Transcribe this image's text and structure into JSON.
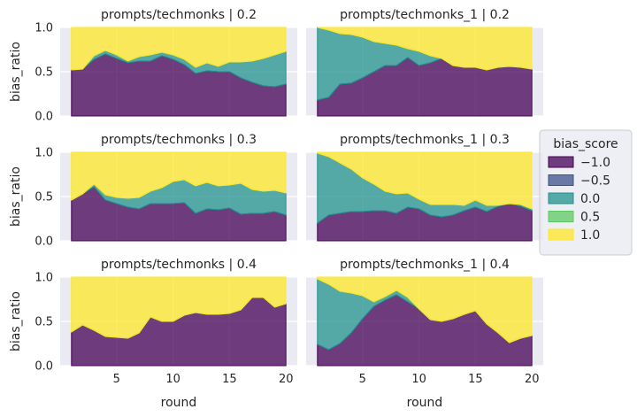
{
  "chart_data": {
    "type": "area",
    "stacked": true,
    "normalized": true,
    "ylim": [
      0,
      1
    ],
    "xlim": [
      0,
      21
    ],
    "xticks": [
      5,
      10,
      15,
      20
    ],
    "yticks": [
      0.0,
      0.5,
      1.0
    ],
    "ytick_labels": [
      "0.0",
      "0.5",
      "1.0"
    ],
    "xlabel": "round",
    "ylabel": "bias_ratio",
    "grid": true,
    "legend": {
      "title": "bias_score",
      "placement": "center-right-outside",
      "entries": [
        {
          "label": "−1.0",
          "color": "#440154"
        },
        {
          "label": "−0.5",
          "color": "#3b528b"
        },
        {
          "label": "0.0",
          "color": "#21918c"
        },
        {
          "label": "0.5",
          "color": "#5ec962"
        },
        {
          "label": "1.0",
          "color": "#fde725"
        }
      ]
    },
    "panels": [
      {
        "title": "prompts/techmonks | 0.2",
        "x": [
          1,
          2,
          3,
          4,
          5,
          6,
          7,
          8,
          9,
          10,
          11,
          12,
          13,
          14,
          15,
          16,
          17,
          18,
          19,
          20
        ],
        "series": [
          {
            "name": "−1.0",
            "values": [
              0.52,
              0.53,
              0.64,
              0.7,
              0.65,
              0.6,
              0.62,
              0.62,
              0.68,
              0.64,
              0.58,
              0.48,
              0.51,
              0.5,
              0.5,
              0.43,
              0.38,
              0.34,
              0.33,
              0.36
            ]
          },
          {
            "name": "−0.5",
            "values": [
              0,
              0,
              0,
              0,
              0,
              0,
              0,
              0,
              0,
              0,
              0,
              0,
              0,
              0,
              0,
              0,
              0,
              0,
              0,
              0
            ]
          },
          {
            "name": "0.0",
            "values": [
              0,
              0,
              0.04,
              0.04,
              0.04,
              0.02,
              0.05,
              0.07,
              0.04,
              0.05,
              0.06,
              0.07,
              0.09,
              0.06,
              0.11,
              0.18,
              0.24,
              0.31,
              0.36,
              0.37
            ]
          },
          {
            "name": "0.5",
            "values": [
              0,
              0,
              0,
              0,
              0,
              0,
              0,
              0,
              0,
              0,
              0,
              0,
              0,
              0,
              0,
              0,
              0,
              0,
              0,
              0
            ]
          },
          {
            "name": "1.0",
            "values": [
              0.48,
              0.47,
              0.32,
              0.26,
              0.31,
              0.38,
              0.33,
              0.31,
              0.28,
              0.31,
              0.36,
              0.45,
              0.4,
              0.44,
              0.39,
              0.39,
              0.38,
              0.35,
              0.31,
              0.27
            ]
          }
        ]
      },
      {
        "title": "prompts/techmonks_1 | 0.2",
        "x": [
          1,
          2,
          3,
          4,
          5,
          6,
          7,
          8,
          9,
          10,
          11,
          12,
          13,
          14,
          15,
          16,
          17,
          18,
          19,
          20
        ],
        "series": [
          {
            "name": "−1.0",
            "values": [
              0.18,
              0.21,
              0.36,
              0.37,
              0.43,
              0.5,
              0.57,
              0.57,
              0.66,
              0.57,
              0.6,
              0.65,
              0.57,
              0.55,
              0.55,
              0.52,
              0.55,
              0.56,
              0.55,
              0.53
            ]
          },
          {
            "name": "−0.5",
            "values": [
              0,
              0,
              0,
              0,
              0,
              0,
              0,
              0,
              0,
              0,
              0,
              0,
              0,
              0,
              0,
              0,
              0,
              0,
              0,
              0
            ]
          },
          {
            "name": "0.0",
            "values": [
              0.82,
              0.76,
              0.57,
              0.55,
              0.46,
              0.34,
              0.25,
              0.23,
              0.1,
              0.16,
              0.08,
              0.0,
              0.0,
              0.0,
              0.0,
              0.0,
              0.0,
              0.0,
              0.0,
              0.0
            ]
          },
          {
            "name": "0.5",
            "values": [
              0,
              0,
              0,
              0,
              0,
              0,
              0,
              0,
              0,
              0,
              0,
              0,
              0,
              0,
              0,
              0,
              0,
              0,
              0,
              0
            ]
          },
          {
            "name": "1.0",
            "values": [
              0.0,
              0.03,
              0.07,
              0.08,
              0.11,
              0.16,
              0.18,
              0.2,
              0.24,
              0.27,
              0.32,
              0.35,
              0.43,
              0.45,
              0.45,
              0.48,
              0.45,
              0.44,
              0.45,
              0.47
            ]
          }
        ]
      },
      {
        "title": "prompts/techmonks | 0.3",
        "x": [
          1,
          2,
          3,
          4,
          5,
          6,
          7,
          8,
          9,
          10,
          11,
          12,
          13,
          14,
          15,
          16,
          17,
          18,
          19,
          20
        ],
        "series": [
          {
            "name": "−1.0",
            "values": [
              0.46,
              0.53,
              0.61,
              0.46,
              0.42,
              0.38,
              0.36,
              0.42,
              0.42,
              0.42,
              0.43,
              0.31,
              0.36,
              0.35,
              0.37,
              0.3,
              0.31,
              0.31,
              0.33,
              0.29
            ]
          },
          {
            "name": "−0.5",
            "values": [
              0,
              0,
              0,
              0,
              0,
              0,
              0,
              0,
              0,
              0,
              0,
              0,
              0,
              0,
              0,
              0,
              0,
              0,
              0,
              0
            ]
          },
          {
            "name": "0.0",
            "values": [
              0,
              0,
              0.03,
              0.06,
              0.07,
              0.1,
              0.13,
              0.14,
              0.18,
              0.25,
              0.26,
              0.31,
              0.3,
              0.27,
              0.26,
              0.35,
              0.27,
              0.25,
              0.24,
              0.25
            ]
          },
          {
            "name": "0.5",
            "values": [
              0,
              0,
              0,
              0,
              0,
              0,
              0,
              0,
              0,
              0,
              0,
              0,
              0,
              0,
              0,
              0,
              0,
              0,
              0,
              0
            ]
          },
          {
            "name": "1.0",
            "values": [
              0.54,
              0.47,
              0.36,
              0.48,
              0.51,
              0.52,
              0.51,
              0.44,
              0.4,
              0.33,
              0.31,
              0.38,
              0.34,
              0.38,
              0.37,
              0.35,
              0.42,
              0.44,
              0.43,
              0.46
            ]
          }
        ]
      },
      {
        "title": "prompts/techmonks_1 | 0.3",
        "x": [
          1,
          2,
          3,
          4,
          5,
          6,
          7,
          8,
          9,
          10,
          11,
          12,
          13,
          14,
          15,
          16,
          17,
          18,
          19,
          20
        ],
        "series": [
          {
            "name": "−1.0",
            "values": [
              0.2,
              0.29,
              0.31,
              0.33,
              0.33,
              0.34,
              0.34,
              0.31,
              0.38,
              0.36,
              0.29,
              0.27,
              0.29,
              0.34,
              0.38,
              0.33,
              0.39,
              0.42,
              0.39,
              0.34
            ]
          },
          {
            "name": "−0.5",
            "values": [
              0,
              0,
              0,
              0,
              0,
              0,
              0,
              0,
              0,
              0,
              0,
              0,
              0,
              0,
              0,
              0,
              0,
              0,
              0,
              0
            ]
          },
          {
            "name": "0.0",
            "values": [
              0.79,
              0.66,
              0.57,
              0.48,
              0.38,
              0.3,
              0.22,
              0.22,
              0.16,
              0.11,
              0.12,
              0.14,
              0.12,
              0.06,
              0.08,
              0.07,
              0.01,
              0.0,
              0.02,
              0.02
            ]
          },
          {
            "name": "0.5",
            "values": [
              0,
              0,
              0,
              0,
              0,
              0,
              0,
              0,
              0,
              0,
              0,
              0,
              0,
              0,
              0,
              0,
              0,
              0,
              0,
              0
            ]
          },
          {
            "name": "1.0",
            "values": [
              0.01,
              0.05,
              0.12,
              0.19,
              0.29,
              0.36,
              0.44,
              0.47,
              0.46,
              0.53,
              0.59,
              0.59,
              0.59,
              0.6,
              0.54,
              0.6,
              0.6,
              0.58,
              0.59,
              0.64
            ]
          }
        ]
      },
      {
        "title": "prompts/techmonks | 0.4",
        "x": [
          1,
          2,
          3,
          4,
          5,
          6,
          7,
          8,
          9,
          10,
          11,
          12,
          13,
          14,
          15,
          16,
          17,
          18,
          19,
          20
        ],
        "series": [
          {
            "name": "−1.0",
            "values": [
              0.38,
              0.46,
              0.4,
              0.33,
              0.32,
              0.31,
              0.37,
              0.55,
              0.5,
              0.5,
              0.57,
              0.6,
              0.58,
              0.58,
              0.59,
              0.63,
              0.77,
              0.77,
              0.66,
              0.7
            ]
          },
          {
            "name": "−0.5",
            "values": [
              0,
              0,
              0,
              0,
              0,
              0,
              0,
              0,
              0,
              0,
              0,
              0,
              0,
              0,
              0,
              0,
              0,
              0,
              0,
              0
            ]
          },
          {
            "name": "0.0",
            "values": [
              0,
              0,
              0,
              0,
              0,
              0,
              0,
              0,
              0,
              0,
              0,
              0,
              0,
              0,
              0,
              0,
              0,
              0,
              0,
              0
            ]
          },
          {
            "name": "0.5",
            "values": [
              0,
              0,
              0,
              0,
              0,
              0,
              0,
              0,
              0,
              0,
              0,
              0,
              0,
              0,
              0,
              0,
              0,
              0,
              0,
              0
            ]
          },
          {
            "name": "1.0",
            "values": [
              0.62,
              0.54,
              0.6,
              0.67,
              0.68,
              0.69,
              0.63,
              0.45,
              0.5,
              0.5,
              0.43,
              0.4,
              0.42,
              0.42,
              0.41,
              0.37,
              0.23,
              0.23,
              0.34,
              0.3
            ]
          }
        ]
      },
      {
        "title": "prompts/techmonks_1 | 0.4",
        "x": [
          1,
          2,
          3,
          4,
          5,
          6,
          7,
          8,
          9,
          10,
          11,
          12,
          13,
          14,
          15,
          16,
          17,
          18,
          19,
          20
        ],
        "series": [
          {
            "name": "−1.0",
            "values": [
              0.24,
              0.18,
              0.25,
              0.37,
              0.53,
              0.67,
              0.74,
              0.8,
              0.72,
              0.64,
              0.52,
              0.5,
              0.53,
              0.58,
              0.62,
              0.47,
              0.37,
              0.26,
              0.31,
              0.34
            ]
          },
          {
            "name": "−0.5",
            "values": [
              0,
              0,
              0,
              0,
              0,
              0,
              0,
              0,
              0,
              0,
              0,
              0,
              0,
              0,
              0,
              0,
              0,
              0,
              0,
              0
            ]
          },
          {
            "name": "0.0",
            "values": [
              0.74,
              0.74,
              0.59,
              0.45,
              0.26,
              0.05,
              0.04,
              0.05,
              0.05,
              0.0,
              0.0,
              0.0,
              0.0,
              0.0,
              0.0,
              0.0,
              0.0,
              0.0,
              0.0,
              0.0
            ]
          },
          {
            "name": "0.5",
            "values": [
              0,
              0,
              0,
              0,
              0,
              0,
              0,
              0,
              0,
              0,
              0,
              0,
              0,
              0,
              0,
              0,
              0,
              0,
              0,
              0
            ]
          },
          {
            "name": "1.0",
            "values": [
              0.02,
              0.08,
              0.16,
              0.18,
              0.21,
              0.28,
              0.22,
              0.15,
              0.23,
              0.36,
              0.48,
              0.5,
              0.47,
              0.42,
              0.38,
              0.53,
              0.63,
              0.74,
              0.69,
              0.66
            ]
          }
        ]
      }
    ]
  }
}
